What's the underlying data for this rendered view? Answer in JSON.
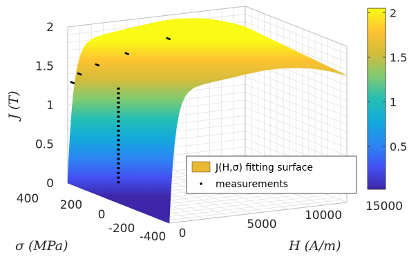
{
  "chart_data": {
    "type": "surface3d",
    "title": "",
    "z_axis": {
      "label_var": "J",
      "label_unit": "(T)",
      "ticks": [
        "0",
        "0.5",
        "1",
        "1.5",
        "2"
      ],
      "range": [
        0,
        2
      ]
    },
    "x_axis": {
      "label_var": "H",
      "label_unit": "(A/m)",
      "ticks": [
        "0",
        "5000",
        "10000",
        "15000"
      ],
      "range": [
        0,
        15000
      ]
    },
    "y_axis": {
      "label_var": "σ",
      "label_unit": "(MPa)",
      "ticks": [
        "400",
        "200",
        "0",
        "-200",
        "-400"
      ],
      "range": [
        -400,
        400
      ]
    },
    "colorbar": {
      "ticks": [
        "0.5",
        "1",
        "1.5",
        "2"
      ],
      "range": [
        0.02,
        2.05
      ],
      "colormap": "parula",
      "colors": [
        "#3e26a8",
        "#4352f4",
        "#2b87f2",
        "#13aadb",
        "#25bfb4",
        "#80ca71",
        "#d3bc3b",
        "#fec331",
        "#f9fb15"
      ]
    },
    "legend": {
      "placement": "bottom-right",
      "surface_label": "J(H,σ) fitting surface",
      "surface_color": "#e9b830",
      "points_label": "measurements"
    },
    "grid": true,
    "measurements": [
      {
        "x": 200,
        "z": 0.02
      },
      {
        "x": 200,
        "z": 0.08
      },
      {
        "x": 200,
        "z": 0.14
      },
      {
        "x": 200,
        "z": 0.2
      },
      {
        "x": 200,
        "z": 0.26
      },
      {
        "x": 200,
        "z": 0.32
      },
      {
        "x": 200,
        "z": 0.38
      },
      {
        "x": 200,
        "z": 0.44
      },
      {
        "x": 200,
        "z": 0.5
      },
      {
        "x": 200,
        "z": 0.56
      },
      {
        "x": 200,
        "z": 0.62
      },
      {
        "x": 200,
        "z": 0.68
      },
      {
        "x": 200,
        "z": 0.74
      },
      {
        "x": 200,
        "z": 0.8
      },
      {
        "x": 200,
        "z": 0.86
      },
      {
        "x": 200,
        "z": 0.92
      },
      {
        "x": 200,
        "z": 0.98
      },
      {
        "x": 200,
        "z": 1.04
      },
      {
        "x": 200,
        "z": 1.1
      },
      {
        "x": 200,
        "z": 1.16
      },
      {
        "x": 200,
        "z": 1.22
      },
      {
        "x": 400,
        "z": 1.28
      },
      {
        "x": 1000,
        "z": 1.38
      },
      {
        "x": 2500,
        "z": 1.47
      },
      {
        "x": 5000,
        "z": 1.57
      },
      {
        "x": 8500,
        "z": 1.7
      }
    ],
    "surface_model": "J increases steeply from 0 at H=0 to about 1.3 T near H=500 A/m, then rises slowly to about 1.7-1.8 T at H=15000 A/m; stress σ shifts the curve"
  }
}
